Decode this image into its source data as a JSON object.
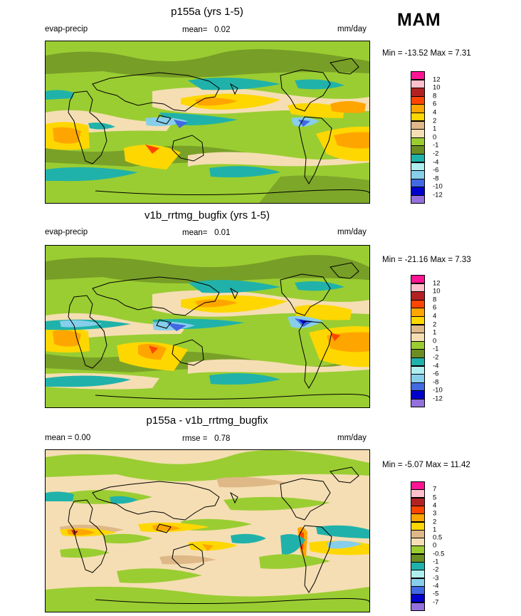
{
  "season_label": "MAM",
  "panels": [
    {
      "title": "p155a (yrs 1-5)",
      "left_label": "evap-precip",
      "mean_label": "mean=",
      "mean_value": "0.02",
      "units": "mm/day",
      "minmax": "Min = -13.52 Max =   7.31",
      "legend": {
        "colors": [
          "#ff1493",
          "#ffc0cb",
          "#b22222",
          "#ff4500",
          "#ffa500",
          "#ffd700",
          "#deb887",
          "#f5deb3",
          "#9acd32",
          "#6b8e23",
          "#20b2aa",
          "#afeeee",
          "#87ceeb",
          "#4169e1",
          "#0000cd",
          "#9370db"
        ],
        "labels": [
          "12",
          "10",
          "8",
          "6",
          "4",
          "2",
          "1",
          "0",
          "-1",
          "-2",
          "-4",
          "-6",
          "-8",
          "-10",
          "-12"
        ]
      }
    },
    {
      "title": "v1b_rrtmg_bugfix (yrs 1-5)",
      "left_label": "evap-precip",
      "mean_label": "mean=",
      "mean_value": "0.01",
      "units": "mm/day",
      "minmax": "Min = -21.16 Max =   7.33",
      "legend": {
        "colors": [
          "#ff1493",
          "#ffc0cb",
          "#b22222",
          "#ff4500",
          "#ffa500",
          "#ffd700",
          "#deb887",
          "#f5deb3",
          "#9acd32",
          "#6b8e23",
          "#20b2aa",
          "#afeeee",
          "#87ceeb",
          "#4169e1",
          "#0000cd",
          "#9370db"
        ],
        "labels": [
          "12",
          "10",
          "8",
          "6",
          "4",
          "2",
          "1",
          "0",
          "-1",
          "-2",
          "-4",
          "-6",
          "-8",
          "-10",
          "-12"
        ]
      }
    },
    {
      "title": "p155a - v1b_rrtmg_bugfix",
      "left_label": "mean =   0.00",
      "mean_label": "rmse =",
      "mean_value": "0.78",
      "units": "mm/day",
      "minmax": "Min =  -5.07 Max =  11.42",
      "legend": {
        "colors": [
          "#ff1493",
          "#ffc0cb",
          "#b22222",
          "#ff4500",
          "#ffa500",
          "#ffd700",
          "#deb887",
          "#f5deb3",
          "#9acd32",
          "#6b8e23",
          "#20b2aa",
          "#afeeee",
          "#87ceeb",
          "#4169e1",
          "#0000cd",
          "#9370db"
        ],
        "labels": [
          "7",
          "5",
          "4",
          "3",
          "2",
          "1",
          "0.5",
          "0",
          "-0.5",
          "-1",
          "-2",
          "-3",
          "-4",
          "-5",
          "-7"
        ]
      }
    }
  ]
}
